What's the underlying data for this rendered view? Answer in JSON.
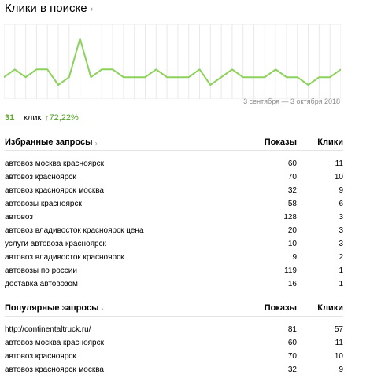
{
  "header": {
    "title": "Клики в поиске",
    "chevron_icon": "chevron-right-icon"
  },
  "colors": {
    "line": "#8cd25a",
    "grid": "#e9e9e9",
    "accent": "#5eab2a"
  },
  "chart_data": {
    "type": "line",
    "x_range_label": "3 сентября — 3 октября 2018",
    "values": [
      1,
      2,
      1,
      2,
      2,
      0,
      1,
      6,
      1,
      2,
      2,
      1,
      1,
      1,
      2,
      1,
      1,
      1,
      2,
      0,
      1,
      2,
      1,
      1,
      1,
      2,
      1,
      1,
      0,
      1,
      1,
      2
    ]
  },
  "summary": {
    "clicks": "31",
    "unit": "клик",
    "delta": "↑72,22%"
  },
  "favorites": {
    "title": "Избранные запросы",
    "col_shows": "Показы",
    "col_clicks": "Клики",
    "rows": [
      {
        "query": "автовоз москва красноярск",
        "shows": "60",
        "clicks": "11"
      },
      {
        "query": "автовоз красноярск",
        "shows": "70",
        "clicks": "10"
      },
      {
        "query": "автовоз красноярск москва",
        "shows": "32",
        "clicks": "9"
      },
      {
        "query": "автовозы красноярск",
        "shows": "58",
        "clicks": "6"
      },
      {
        "query": "автовоз",
        "shows": "128",
        "clicks": "3"
      },
      {
        "query": "автовоз владивосток красноярск цена",
        "shows": "20",
        "clicks": "3"
      },
      {
        "query": "услуги автовоза красноярск",
        "shows": "10",
        "clicks": "3"
      },
      {
        "query": "автовоз владивосток красноярск",
        "shows": "9",
        "clicks": "2"
      },
      {
        "query": "автовозы по россии",
        "shows": "119",
        "clicks": "1"
      },
      {
        "query": "доставка автовозом",
        "shows": "16",
        "clicks": "1"
      }
    ]
  },
  "popular": {
    "title": "Популярные запросы",
    "col_shows": "Показы",
    "col_clicks": "Клики",
    "rows": [
      {
        "query": "http://continentaltruck.ru/",
        "shows": "81",
        "clicks": "57"
      },
      {
        "query": "автовоз москва красноярск",
        "shows": "60",
        "clicks": "11"
      },
      {
        "query": "автовоз красноярск",
        "shows": "70",
        "clicks": "10"
      },
      {
        "query": "автовоз красноярск москва",
        "shows": "32",
        "clicks": "9"
      }
    ]
  }
}
